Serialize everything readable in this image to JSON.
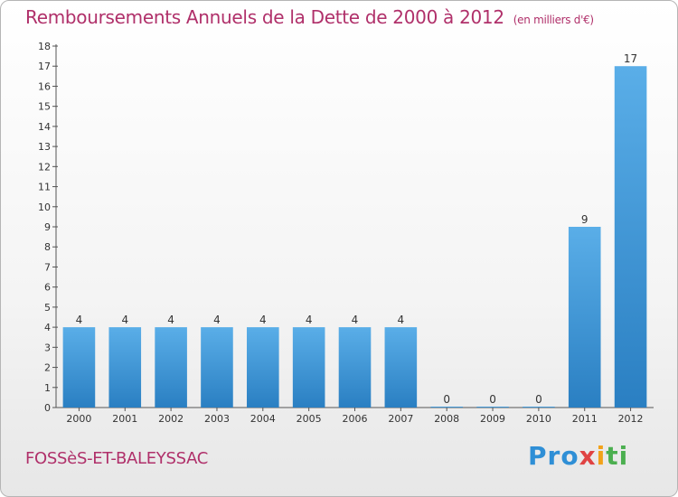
{
  "header": {
    "title": "Remboursements Annuels de la Dette de 2000 à 2012",
    "unit": "(en milliers d'€)"
  },
  "footer": {
    "commune": "FOSSèS-ET-BALEYSSAC",
    "logo": [
      "Pro",
      "x",
      "i",
      "ti"
    ]
  },
  "colors": {
    "title": "#b0306a",
    "bar_light": "#5aaee8",
    "bar_dark": "#2a7fc2"
  },
  "chart_data": {
    "type": "bar",
    "title": "Remboursements Annuels de la Dette de 2000 à 2012",
    "categories": [
      "2000",
      "2001",
      "2002",
      "2003",
      "2004",
      "2005",
      "2006",
      "2007",
      "2008",
      "2009",
      "2010",
      "2011",
      "2012"
    ],
    "values": [
      4,
      4,
      4,
      4,
      4,
      4,
      4,
      4,
      0,
      0,
      0,
      9,
      17
    ],
    "data_labels": [
      "4",
      "4",
      "4",
      "4",
      "4",
      "4",
      "4",
      "4",
      "0",
      "0",
      "0",
      "9",
      "17"
    ],
    "ylim": [
      0,
      18
    ],
    "yticks": [
      0,
      1,
      2,
      3,
      4,
      5,
      6,
      7,
      8,
      9,
      10,
      11,
      12,
      13,
      14,
      15,
      16,
      17,
      18
    ],
    "ytick_labels": [
      "0",
      "1",
      "2",
      "3",
      "4",
      "5",
      "6",
      "7",
      "8",
      "9",
      "10",
      "11",
      "12",
      "13",
      "14",
      "15",
      "16",
      "17",
      "18"
    ],
    "grid": false,
    "xlabel": "",
    "ylabel": ""
  }
}
